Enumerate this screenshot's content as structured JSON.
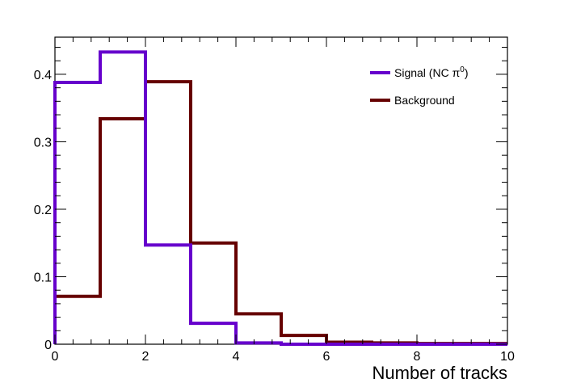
{
  "chart_data": {
    "type": "histogram",
    "x_label": "Number of tracks",
    "y_label": "",
    "x_range": [
      0,
      10
    ],
    "y_range": [
      0,
      0.455
    ],
    "x_ticks": [
      0,
      2,
      4,
      6,
      8,
      10
    ],
    "x_tick_labels": [
      "0",
      "2",
      "4",
      "6",
      "8",
      "10"
    ],
    "y_ticks": [
      0,
      0.1,
      0.2,
      0.3,
      0.4
    ],
    "y_tick_labels": [
      "0",
      "0.1",
      "0.2",
      "0.3",
      "0.4"
    ],
    "bin_edges": [
      0,
      1,
      2,
      3,
      4,
      5,
      6,
      7,
      8,
      9,
      10
    ],
    "legend_position": "top-right",
    "series": [
      {
        "name": "Signal (NC π⁰)",
        "name_main": "Signal (NC π",
        "name_sup": "0",
        "name_end": ")",
        "color": "#6600cc",
        "values": [
          0.388,
          0.433,
          0.147,
          0.031,
          0.002,
          0.0,
          0.0,
          0.0,
          0.0,
          0.0
        ]
      },
      {
        "name": "Background",
        "color": "#660000",
        "values": [
          0.071,
          0.334,
          0.389,
          0.15,
          0.045,
          0.013,
          0.003,
          0.002,
          0.001,
          0.001
        ]
      }
    ]
  }
}
